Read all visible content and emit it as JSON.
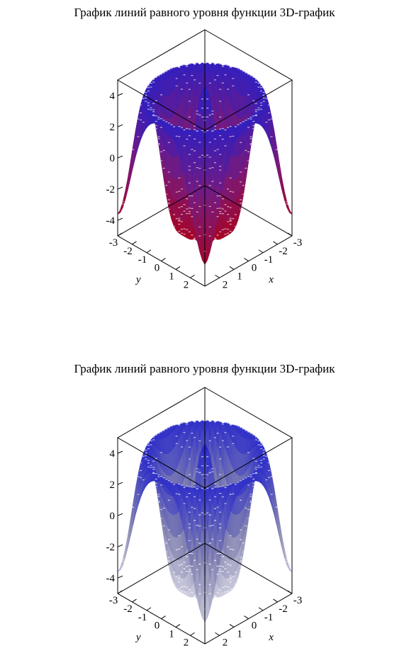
{
  "chart_data": [
    {
      "type": "surface3d",
      "title": "График линий равного уровня функции 3D-график",
      "shading": "red-blue gradient",
      "contours": true,
      "z_ticks": [
        "4",
        "2",
        "0",
        "-2",
        "-4"
      ],
      "y_ticks": [
        "-3",
        "-2",
        "-1",
        "0",
        "1",
        "2"
      ],
      "x_ticks": [
        "-3",
        "-2",
        "-1",
        "0",
        "1",
        "2"
      ],
      "xlabel": "x",
      "ylabel": "y",
      "zlim": [
        -5,
        5
      ],
      "xlim": [
        -3,
        3
      ],
      "ylim": [
        -3,
        3
      ],
      "colors": {
        "low": "#b00010",
        "mid": "#7a1a7a",
        "high": "#2020d0"
      }
    },
    {
      "type": "surface3d",
      "title": "График линий равного уровня функции 3D-график",
      "shading": "grey-blue gradient",
      "contours": true,
      "z_ticks": [
        "4",
        "2",
        "0",
        "-2",
        "-4"
      ],
      "y_ticks": [
        "-3",
        "-2",
        "-1",
        "0",
        "1",
        "2"
      ],
      "x_ticks": [
        "-3",
        "-2",
        "-1",
        "0",
        "1",
        "2"
      ],
      "xlabel": "x",
      "ylabel": "y",
      "zlim": [
        -5,
        5
      ],
      "xlim": [
        -3,
        3
      ],
      "ylim": [
        -3,
        3
      ],
      "colors": {
        "low": "#e0e0e8",
        "mid": "#8080b0",
        "high": "#1a1ad0"
      }
    }
  ]
}
